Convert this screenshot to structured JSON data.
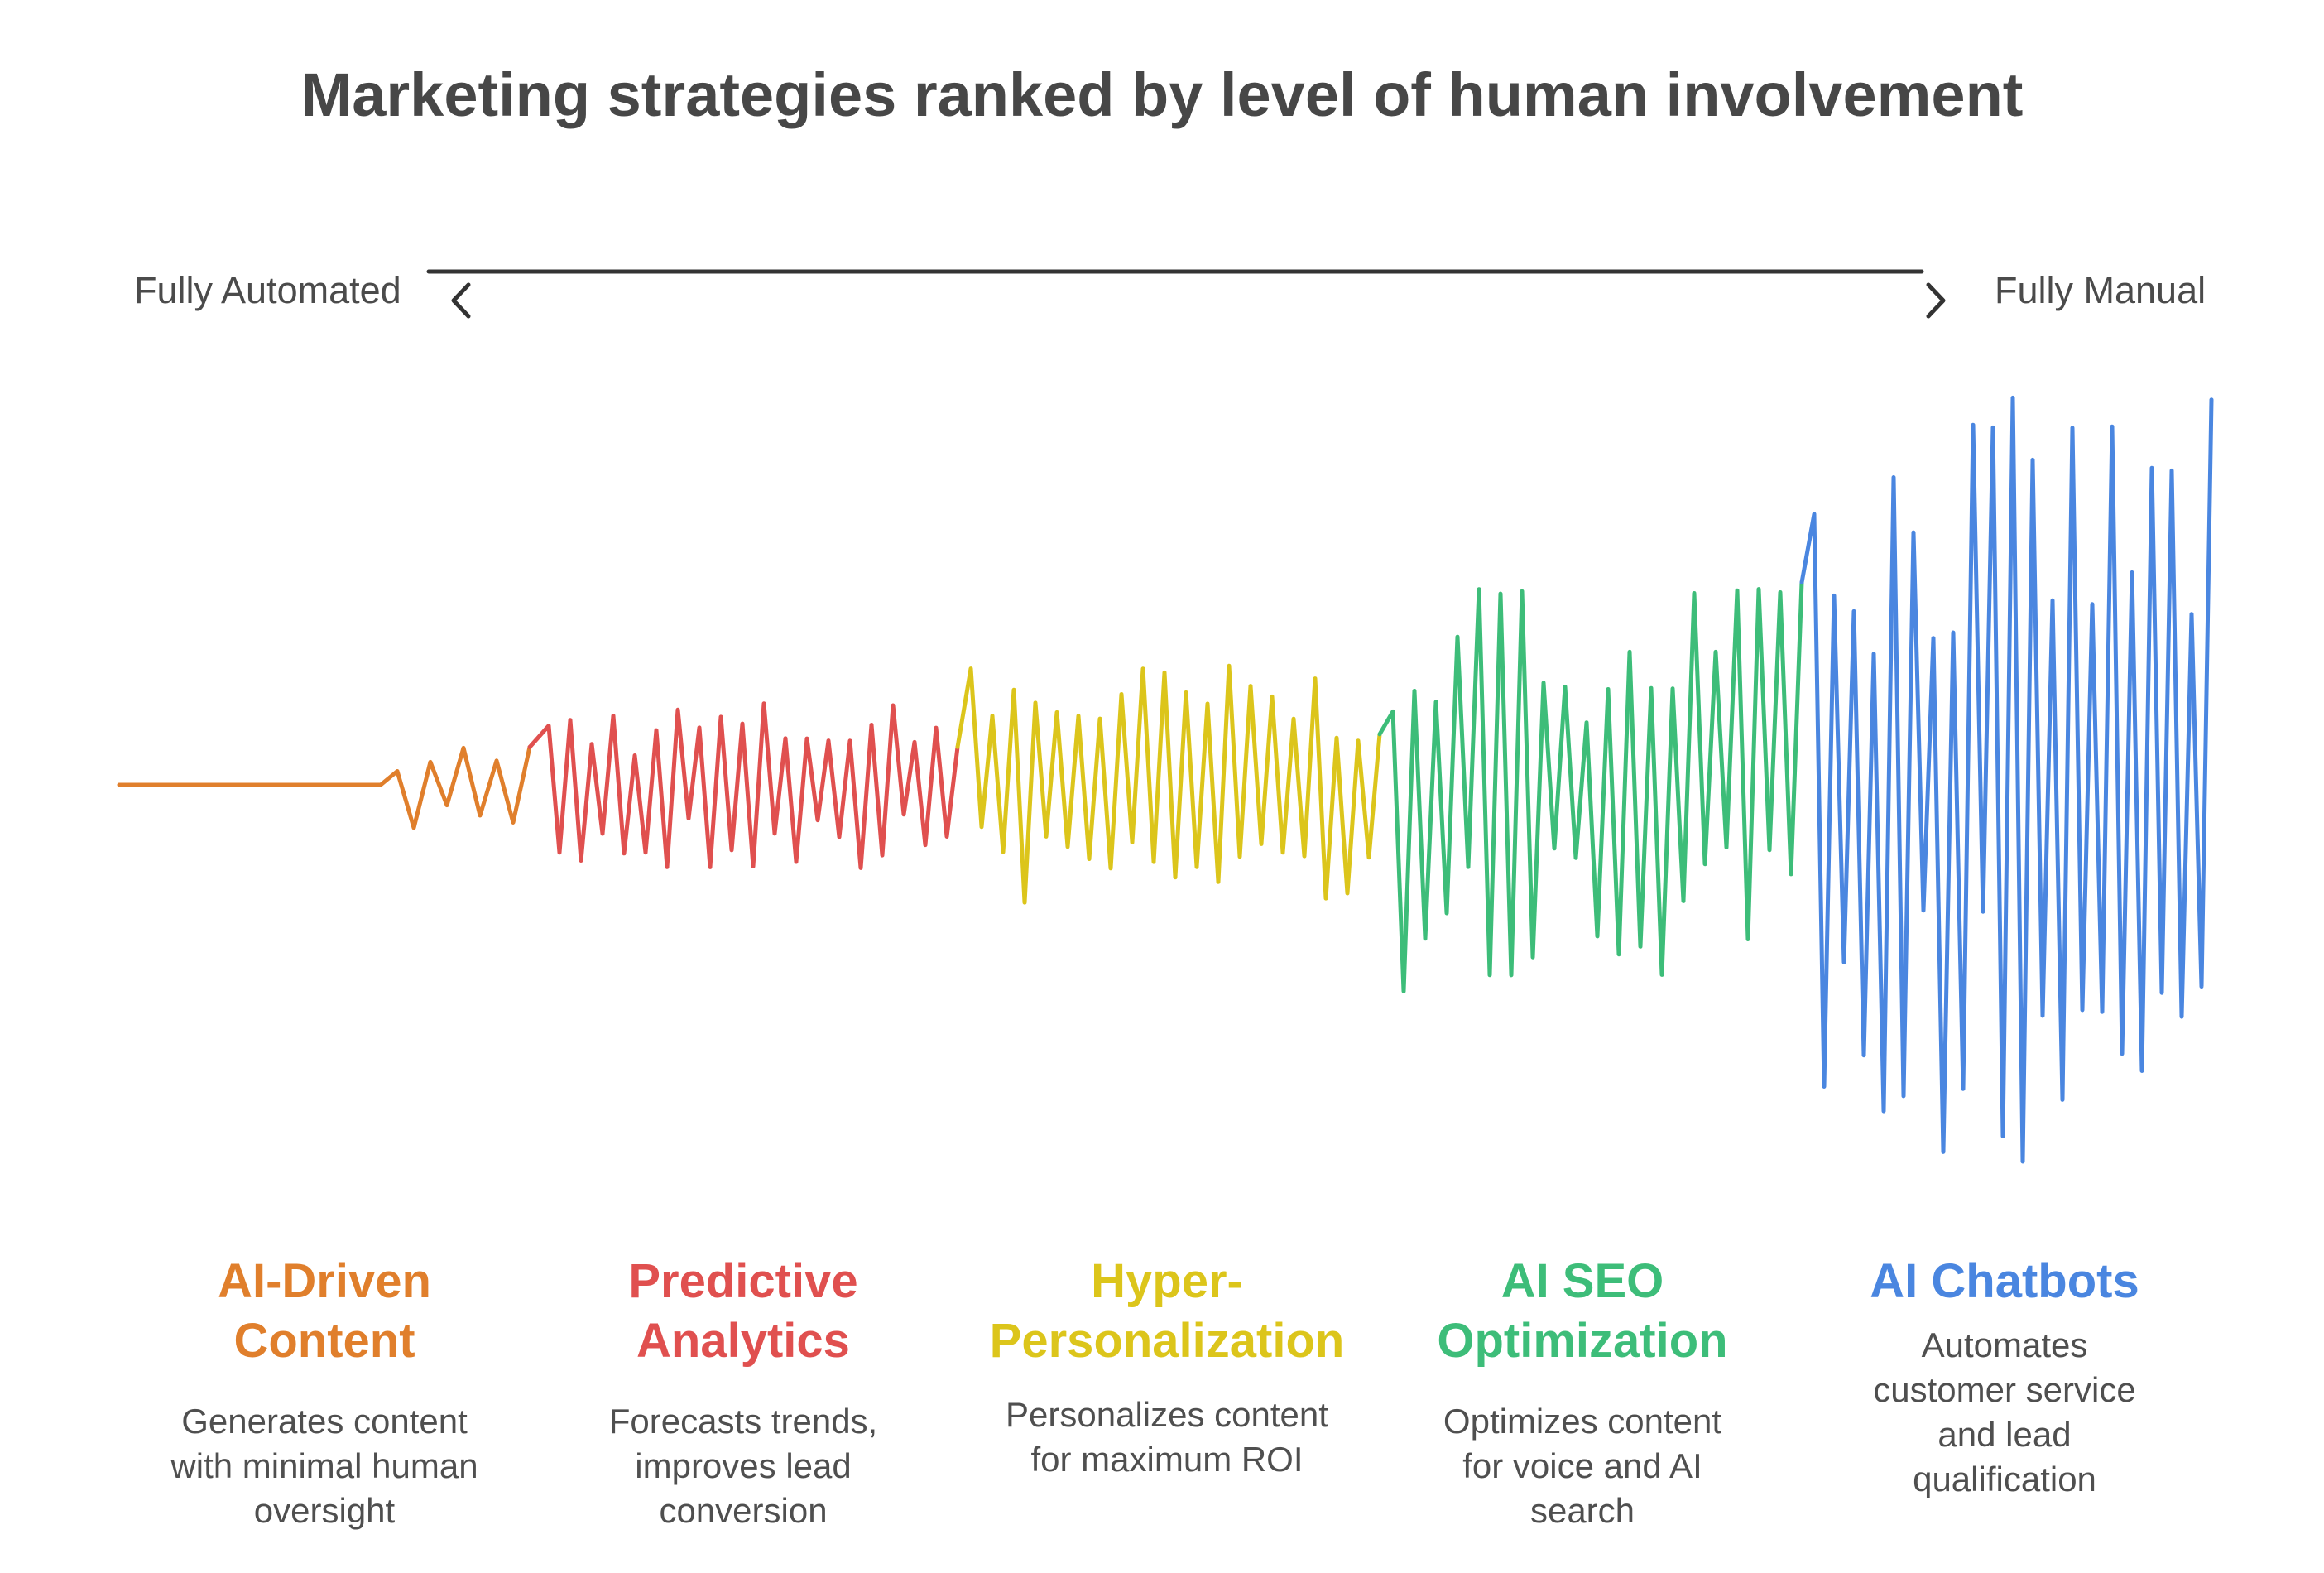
{
  "title": "Marketing strategies ranked by level of human involvement",
  "scale": {
    "left_label": "Fully Automated",
    "right_label": "Fully Manual",
    "line_color": "#333333",
    "left_icon": "chevron-left-icon",
    "right_icon": "chevron-right-icon"
  },
  "strategies": [
    {
      "name_line1": "AI-Driven",
      "name_line2": "Content",
      "description": [
        "Generates content",
        "with minimal human",
        "oversight"
      ],
      "color": "#e07f2c"
    },
    {
      "name_line1": "Predictive",
      "name_line2": "Analytics",
      "description": [
        "Forecasts trends,",
        "improves lead",
        "conversion"
      ],
      "color": "#e0504f"
    },
    {
      "name_line1": "Hyper-",
      "name_line2": "Personalization",
      "description": [
        "Personalizes content",
        "for maximum ROI"
      ],
      "color": "#dcc51b"
    },
    {
      "name_line1": "AI SEO",
      "name_line2": "Optimization",
      "description": [
        "Optimizes content",
        "for voice and AI",
        "search"
      ],
      "color": "#3dbd79"
    },
    {
      "name_line1": "AI Chatbots",
      "name_line2": "",
      "description": [
        "Automates",
        "customer service",
        "and lead",
        "qualification"
      ],
      "color": "#4a86e0"
    }
  ]
}
